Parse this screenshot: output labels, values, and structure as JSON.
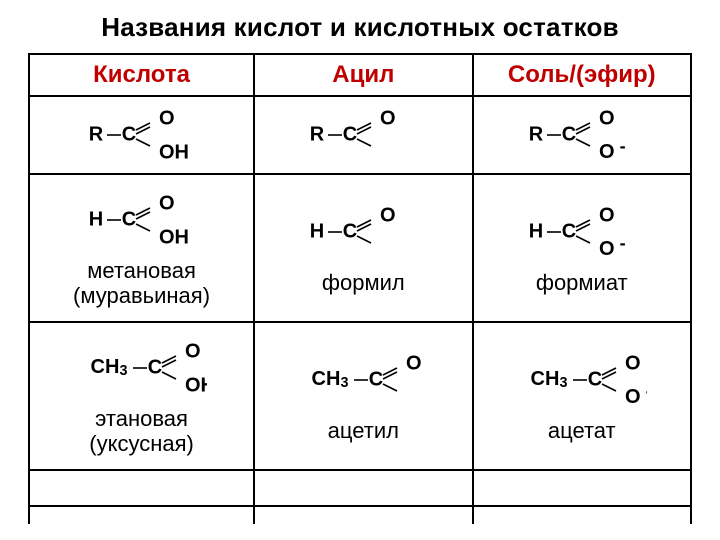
{
  "title": "Названия кислот и кислотных остатков",
  "headers": {
    "acid": "Кислота",
    "acyl": "Ацил",
    "salt": "Соль/(эфир)"
  },
  "colors": {
    "header_text": "#c00000",
    "border": "#000000",
    "text": "#000000",
    "background": "#ffffff"
  },
  "font": {
    "title_size_pt": 20,
    "header_size_pt": 18,
    "caption_size_pt": 17,
    "family": "Arial"
  },
  "structures": {
    "generic_acid": {
      "left": "R",
      "top": "O",
      "bottom": "OH",
      "bond_top": "double",
      "bond_bottom": "single"
    },
    "generic_acyl": {
      "left": "R",
      "top": "O",
      "bottom": "",
      "bond_top": "double",
      "bond_bottom": "single_open"
    },
    "generic_salt": {
      "left": "R",
      "top": "O",
      "bottom": "O⁻",
      "bond_top": "double",
      "bond_bottom": "single"
    },
    "formic_acid": {
      "left": "H",
      "top": "O",
      "bottom": "OH",
      "bond_top": "double",
      "bond_bottom": "single"
    },
    "formyl": {
      "left": "H",
      "top": "O",
      "bottom": "",
      "bond_top": "double",
      "bond_bottom": "single_open"
    },
    "formate": {
      "left": "H",
      "top": "O",
      "bottom": "O⁻",
      "bond_top": "double",
      "bond_bottom": "single"
    },
    "acetic_acid": {
      "left": "CH₃",
      "top": "O",
      "bottom": "OH",
      "bond_top": "double",
      "bond_bottom": "single"
    },
    "acetyl": {
      "left": "CH₃",
      "top": "O",
      "bottom": "",
      "bond_top": "double",
      "bond_bottom": "single_open"
    },
    "acetate": {
      "left": "CH₃",
      "top": "O",
      "bottom": "O⁻",
      "bond_top": "double",
      "bond_bottom": "single"
    }
  },
  "rows": [
    {
      "acid": {
        "structure": "generic_acid",
        "caption": ""
      },
      "acyl": {
        "structure": "generic_acyl",
        "caption": ""
      },
      "salt": {
        "structure": "generic_salt",
        "caption": ""
      }
    },
    {
      "acid": {
        "structure": "formic_acid",
        "caption": "метановая\n(муравьиная)"
      },
      "acyl": {
        "structure": "formyl",
        "caption": "формил"
      },
      "salt": {
        "structure": "formate",
        "caption": "формиат"
      }
    },
    {
      "acid": {
        "structure": "acetic_acid",
        "caption": "этановая\n(уксусная)"
      },
      "acyl": {
        "structure": "acetyl",
        "caption": "ацетил"
      },
      "salt": {
        "structure": "acetate",
        "caption": "ацетат"
      }
    }
  ]
}
